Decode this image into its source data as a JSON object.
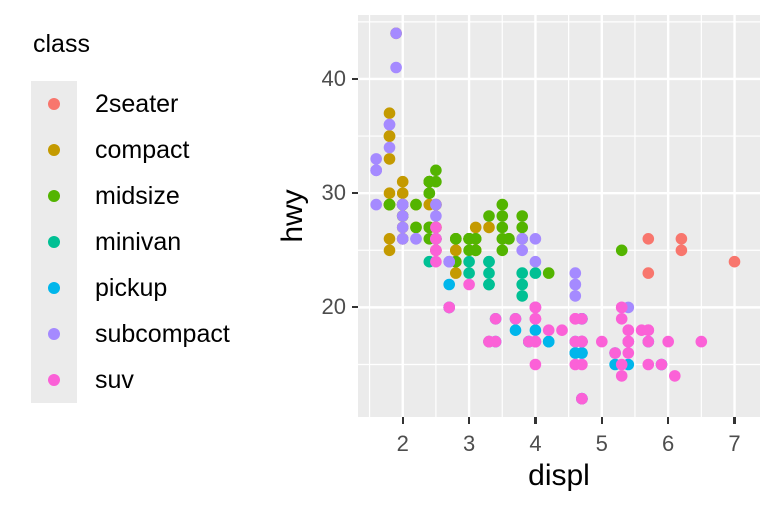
{
  "legend": {
    "title": "class",
    "items": [
      {
        "label": "2seater",
        "color": "#F8766D"
      },
      {
        "label": "compact",
        "color": "#C49A00"
      },
      {
        "label": "midsize",
        "color": "#53B400"
      },
      {
        "label": "minivan",
        "color": "#00C094"
      },
      {
        "label": "pickup",
        "color": "#00B6EB"
      },
      {
        "label": "subcompact",
        "color": "#A58AFF"
      },
      {
        "label": "suv",
        "color": "#FB61D7"
      }
    ]
  },
  "chart_data": {
    "type": "scatter",
    "title": "",
    "xlabel": "displ",
    "ylabel": "hwy",
    "xlim": [
      1.326,
      7.384
    ],
    "ylim": [
      10.4,
      45.6
    ],
    "x_ticks": [
      2,
      3,
      4,
      5,
      6,
      7
    ],
    "y_ticks": [
      20,
      30,
      40
    ],
    "x_minor": [
      1.5,
      2.5,
      3.5,
      4.5,
      5.5,
      6.5
    ],
    "y_minor": [
      15,
      25,
      35,
      45
    ],
    "grid": "major-and-minor",
    "legend_position": "left",
    "panel_bg": "#EBEBEB",
    "grid_color": "#FFFFFF",
    "tick_label_color": "#4D4D4D",
    "tick_mark_color": "#333333",
    "point_radius_px": 5.8,
    "series": [
      {
        "name": "2seater",
        "color": "#F8766D",
        "points": [
          [
            5.7,
            26
          ],
          [
            5.7,
            23
          ],
          [
            6.2,
            26
          ],
          [
            6.2,
            25
          ],
          [
            7,
            24
          ]
        ]
      },
      {
        "name": "compact",
        "color": "#C49A00",
        "points": [
          [
            1.8,
            29
          ],
          [
            1.8,
            29
          ],
          [
            2,
            31
          ],
          [
            2,
            30
          ],
          [
            2.8,
            26
          ],
          [
            2.8,
            26
          ],
          [
            3.1,
            27
          ],
          [
            1.8,
            26
          ],
          [
            1.8,
            25
          ],
          [
            2,
            28
          ],
          [
            2,
            27
          ],
          [
            2.8,
            25
          ],
          [
            2.8,
            25
          ],
          [
            3.1,
            25
          ],
          [
            3.1,
            25
          ],
          [
            2.4,
            29
          ],
          [
            2.4,
            27
          ],
          [
            2.5,
            25
          ],
          [
            2.5,
            27
          ],
          [
            2.5,
            25
          ],
          [
            2.5,
            27
          ],
          [
            2.2,
            27
          ],
          [
            2.2,
            29
          ],
          [
            2.4,
            31
          ],
          [
            2.4,
            31
          ],
          [
            3,
            26
          ],
          [
            3.3,
            27
          ],
          [
            1.8,
            30
          ],
          [
            1.8,
            33
          ],
          [
            1.8,
            35
          ],
          [
            1.8,
            37
          ],
          [
            1.8,
            35
          ],
          [
            2,
            29
          ],
          [
            2,
            26
          ],
          [
            2,
            29
          ],
          [
            2,
            29
          ],
          [
            2.8,
            24
          ],
          [
            1.9,
            44
          ],
          [
            2,
            29
          ],
          [
            2,
            26
          ],
          [
            2,
            29
          ],
          [
            2,
            29
          ],
          [
            2.5,
            29
          ],
          [
            2.5,
            29
          ],
          [
            2.8,
            23
          ],
          [
            2.8,
            24
          ]
        ]
      },
      {
        "name": "midsize",
        "color": "#53B400",
        "points": [
          [
            2.8,
            24
          ],
          [
            3.1,
            25
          ],
          [
            4.2,
            23
          ],
          [
            2.4,
            27
          ],
          [
            2.4,
            30
          ],
          [
            3.1,
            26
          ],
          [
            3.5,
            29
          ],
          [
            3.6,
            26
          ],
          [
            2.4,
            26
          ],
          [
            2.4,
            27
          ],
          [
            2.4,
            30
          ],
          [
            2.4,
            31
          ],
          [
            2.5,
            26
          ],
          [
            2.5,
            26
          ],
          [
            3.3,
            28
          ],
          [
            2.5,
            31
          ],
          [
            2.5,
            32
          ],
          [
            3.5,
            27
          ],
          [
            3.5,
            26
          ],
          [
            3,
            26
          ],
          [
            3,
            25
          ],
          [
            3.5,
            25
          ],
          [
            3.1,
            26
          ],
          [
            3.8,
            26
          ],
          [
            3.8,
            27
          ],
          [
            3.8,
            28
          ],
          [
            5.3,
            25
          ],
          [
            2.2,
            29
          ],
          [
            2.2,
            27
          ],
          [
            2.4,
            31
          ],
          [
            2.4,
            31
          ],
          [
            3,
            26
          ],
          [
            3,
            26
          ],
          [
            3.5,
            28
          ],
          [
            1.8,
            29
          ],
          [
            1.8,
            29
          ],
          [
            2,
            28
          ],
          [
            2,
            29
          ],
          [
            2.8,
            26
          ],
          [
            2.8,
            26
          ],
          [
            3.6,
            26
          ]
        ]
      },
      {
        "name": "minivan",
        "color": "#00C094",
        "points": [
          [
            2.4,
            24
          ],
          [
            3,
            24
          ],
          [
            3.3,
            22
          ],
          [
            3.3,
            22
          ],
          [
            3.3,
            24
          ],
          [
            3.3,
            24
          ],
          [
            3.3,
            17
          ],
          [
            3.8,
            22
          ],
          [
            3.8,
            21
          ],
          [
            3.8,
            23
          ],
          [
            4,
            23
          ],
          [
            3,
            23
          ],
          [
            3.3,
            23
          ]
        ]
      },
      {
        "name": "pickup",
        "color": "#00B6EB",
        "points": [
          [
            3.7,
            19
          ],
          [
            3.7,
            18
          ],
          [
            3.9,
            17
          ],
          [
            3.9,
            17
          ],
          [
            4.7,
            19
          ],
          [
            4.7,
            19
          ],
          [
            4.7,
            12
          ],
          [
            4.7,
            16
          ],
          [
            4.7,
            12
          ],
          [
            4.7,
            17
          ],
          [
            4.7,
            17
          ],
          [
            4.7,
            16
          ],
          [
            4.7,
            16
          ],
          [
            5.2,
            15
          ],
          [
            5.2,
            16
          ],
          [
            5.7,
            17
          ],
          [
            5.9,
            15
          ],
          [
            4.2,
            17
          ],
          [
            4.2,
            17
          ],
          [
            4.6,
            16
          ],
          [
            4.6,
            16
          ],
          [
            4.6,
            17
          ],
          [
            5.4,
            15
          ],
          [
            5.4,
            17
          ],
          [
            2.7,
            20
          ],
          [
            2.7,
            20
          ],
          [
            2.7,
            22
          ],
          [
            3.4,
            17
          ],
          [
            3.4,
            19
          ],
          [
            4,
            18
          ],
          [
            4,
            20
          ]
        ]
      },
      {
        "name": "subcompact",
        "color": "#A58AFF",
        "points": [
          [
            3.8,
            26
          ],
          [
            3.8,
            25
          ],
          [
            4,
            26
          ],
          [
            4,
            24
          ],
          [
            4.6,
            21
          ],
          [
            4.6,
            22
          ],
          [
            4.6,
            23
          ],
          [
            4.6,
            22
          ],
          [
            5.4,
            20
          ],
          [
            1.6,
            33
          ],
          [
            1.6,
            32
          ],
          [
            1.6,
            32
          ],
          [
            1.6,
            29
          ],
          [
            1.6,
            32
          ],
          [
            1.8,
            34
          ],
          [
            1.8,
            36
          ],
          [
            1.8,
            36
          ],
          [
            2,
            29
          ],
          [
            2,
            26
          ],
          [
            2,
            29
          ],
          [
            2,
            28
          ],
          [
            2,
            27
          ],
          [
            2.7,
            24
          ],
          [
            2.7,
            24
          ],
          [
            2.7,
            24
          ],
          [
            2.2,
            26
          ],
          [
            2.2,
            26
          ],
          [
            2.5,
            26
          ],
          [
            2.5,
            26
          ],
          [
            1.9,
            44
          ],
          [
            1.9,
            41
          ],
          [
            2,
            29
          ],
          [
            2,
            26
          ],
          [
            2.5,
            28
          ],
          [
            2.5,
            29
          ]
        ]
      },
      {
        "name": "suv",
        "color": "#FB61D7",
        "points": [
          [
            5.3,
            20
          ],
          [
            5.3,
            15
          ],
          [
            5.3,
            20
          ],
          [
            5.7,
            17
          ],
          [
            6,
            17
          ],
          [
            5.3,
            14
          ],
          [
            5.3,
            19
          ],
          [
            5.7,
            15
          ],
          [
            6.5,
            17
          ],
          [
            3.9,
            17
          ],
          [
            4.7,
            17
          ],
          [
            4.7,
            12
          ],
          [
            4.7,
            17
          ],
          [
            5.2,
            16
          ],
          [
            5.9,
            15
          ],
          [
            4.6,
            17
          ],
          [
            5.4,
            17
          ],
          [
            5.4,
            18
          ],
          [
            4,
            17
          ],
          [
            4,
            19
          ],
          [
            4,
            17
          ],
          [
            4,
            19
          ],
          [
            4.6,
            19
          ],
          [
            3,
            22
          ],
          [
            3.7,
            19
          ],
          [
            4,
            20
          ],
          [
            4.7,
            17
          ],
          [
            4.7,
            12
          ],
          [
            4.7,
            19
          ],
          [
            5.7,
            18
          ],
          [
            6.1,
            14
          ],
          [
            4,
            15
          ],
          [
            4.2,
            18
          ],
          [
            4.4,
            18
          ],
          [
            4.6,
            15
          ],
          [
            5.4,
            17
          ],
          [
            5.4,
            16
          ],
          [
            5.4,
            18
          ],
          [
            4,
            17
          ],
          [
            4,
            19
          ],
          [
            4.6,
            19
          ],
          [
            5,
            17
          ],
          [
            3.3,
            17
          ],
          [
            3.3,
            17
          ],
          [
            4,
            20
          ],
          [
            5.6,
            18
          ],
          [
            2.5,
            25
          ],
          [
            2.5,
            24
          ],
          [
            2.5,
            27
          ],
          [
            2.5,
            25
          ],
          [
            2.5,
            26
          ],
          [
            2.7,
            20
          ],
          [
            2.7,
            20
          ],
          [
            3.4,
            19
          ],
          [
            3.4,
            17
          ],
          [
            4,
            20
          ],
          [
            4.7,
            17
          ],
          [
            4.7,
            15
          ],
          [
            5.7,
            18
          ]
        ]
      }
    ]
  }
}
